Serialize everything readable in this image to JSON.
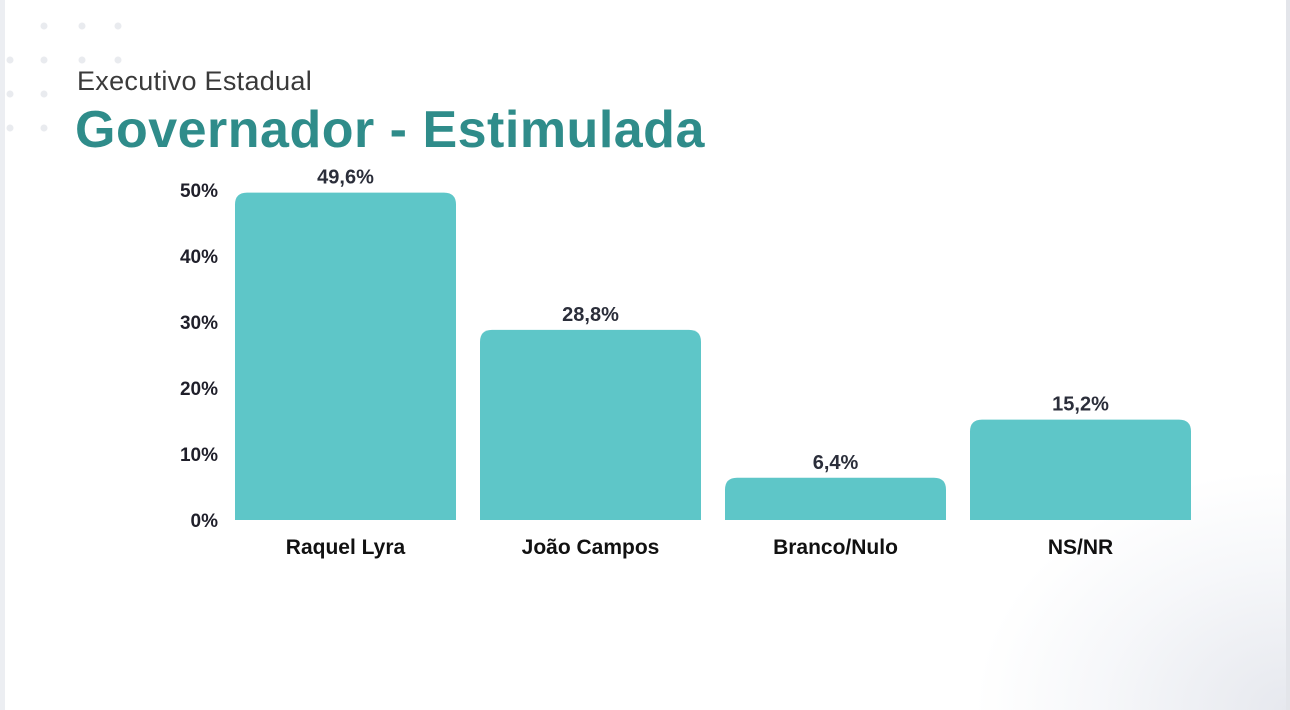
{
  "header": {
    "subtitle": "Executivo Estadual",
    "title": "Governador - Estimulada"
  },
  "chart_data": {
    "type": "bar",
    "categories": [
      "Raquel Lyra",
      "João Campos",
      "Branco/Nulo",
      "NS/NR"
    ],
    "values": [
      49.6,
      28.8,
      6.4,
      15.2
    ],
    "value_labels": [
      "49,6%",
      "28,8%",
      "6,4%",
      "15,2%"
    ],
    "yticks": [
      0,
      10,
      20,
      30,
      40,
      50
    ],
    "ytick_labels": [
      "0%",
      "10%",
      "20%",
      "30%",
      "40%",
      "50%"
    ],
    "ylim": [
      0,
      50
    ],
    "grid": false,
    "bar_color": "#5ec6c8"
  },
  "colors": {
    "title": "#2f8c8a",
    "bar": "#5ec6c8"
  }
}
